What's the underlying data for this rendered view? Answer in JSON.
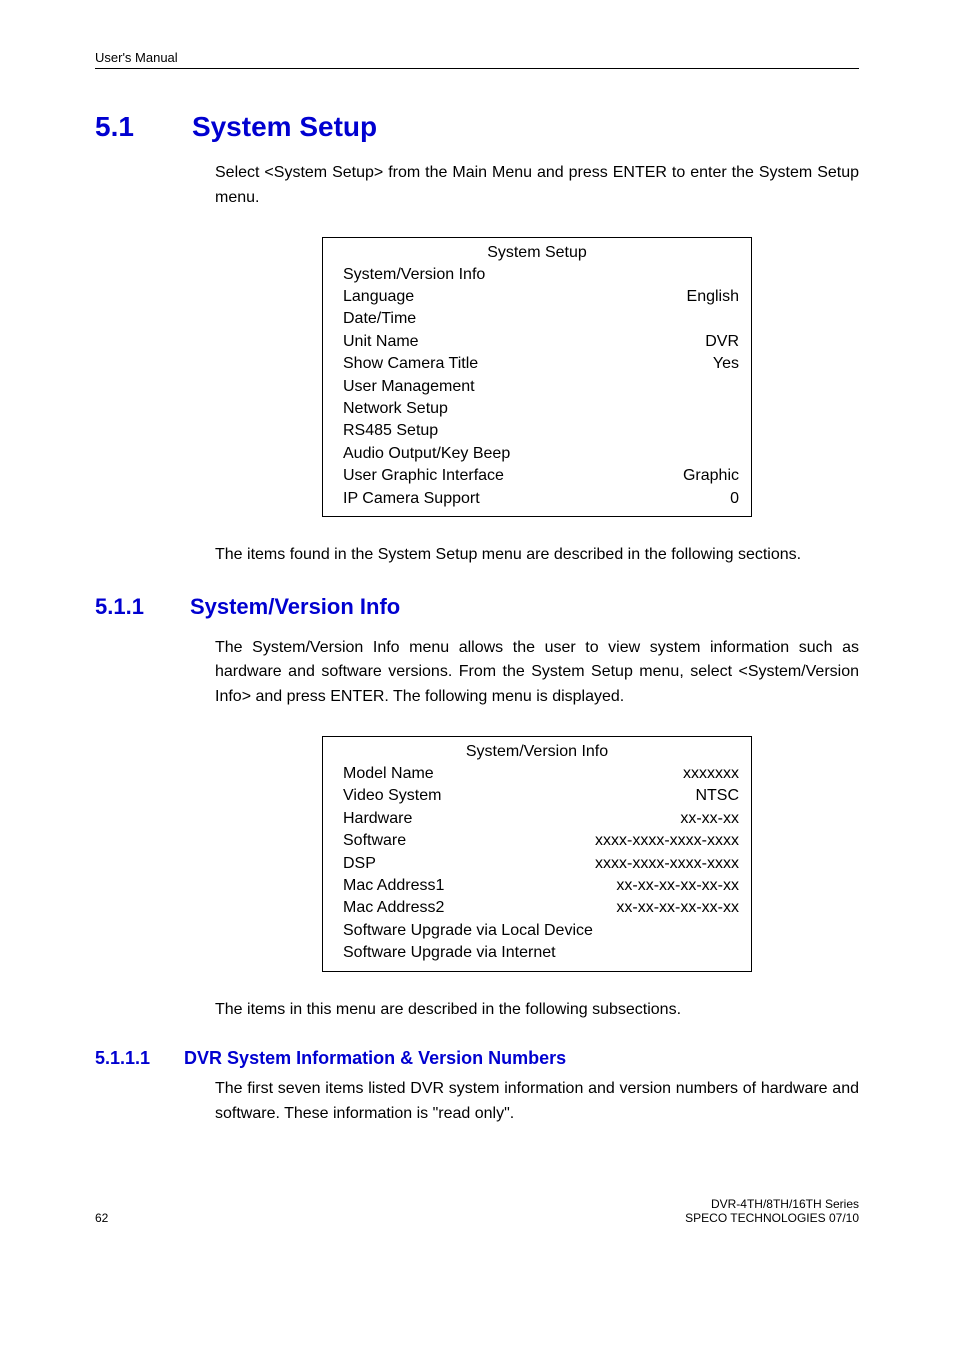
{
  "colors": {
    "heading": "#0000d0",
    "text": "#000000",
    "background": "#ffffff",
    "rule": "#000000"
  },
  "typography": {
    "body_font": "Arial",
    "body_size_pt": 12,
    "h1_size_pt": 21,
    "h2_size_pt": 17,
    "h3_size_pt": 14,
    "running_head_size_pt": 10,
    "footer_size_pt": 9
  },
  "running_head": "User's Manual",
  "section_h1": {
    "num": "5.1",
    "title": "System Setup"
  },
  "para1": "Select <System Setup> from the Main Menu and press ENTER to enter the System Setup menu.",
  "systemSetup": {
    "title": "System Setup",
    "rows": [
      {
        "label": "System/Version Info",
        "value": ""
      },
      {
        "label": "Language",
        "value": "English"
      },
      {
        "label": "Date/Time",
        "value": ""
      },
      {
        "label": "Unit Name",
        "value": "DVR"
      },
      {
        "label": "Show Camera Title",
        "value": "Yes"
      },
      {
        "label": "User Management",
        "value": ""
      },
      {
        "label": "Network Setup",
        "value": ""
      },
      {
        "label": "RS485 Setup",
        "value": ""
      },
      {
        "label": "Audio Output/Key Beep",
        "value": ""
      },
      {
        "label": "User Graphic Interface",
        "value": "Graphic"
      },
      {
        "label": "IP Camera Support",
        "value": "0"
      }
    ]
  },
  "para2": "The items found in the System Setup menu are described in the following sections.",
  "section_h2": {
    "num": "5.1.1",
    "title": "System/Version Info"
  },
  "para3": "The System/Version Info menu allows the user to view system information such as hardware and software versions. From the System Setup menu, select <System/Version Info> and press ENTER. The following menu is displayed.",
  "versionInfo": {
    "title": "System/Version Info",
    "rows": [
      {
        "label": "Model Name",
        "value": "xxxxxxx"
      },
      {
        "label": "Video System",
        "value": "NTSC"
      },
      {
        "label": "Hardware",
        "value": "xx-xx-xx"
      },
      {
        "label": "Software",
        "value": "xxxx-xxxx-xxxx-xxxx"
      },
      {
        "label": "DSP",
        "value": "xxxx-xxxx-xxxx-xxxx"
      },
      {
        "label": "Mac Address1",
        "value": "xx-xx-xx-xx-xx-xx"
      },
      {
        "label": "Mac Address2",
        "value": "xx-xx-xx-xx-xx-xx"
      },
      {
        "label": "Software Upgrade via Local Device",
        "value": ""
      },
      {
        "label": "Software Upgrade via Internet",
        "value": ""
      }
    ]
  },
  "para4": "The items in this menu are described in the following subsections.",
  "section_h3": {
    "num": "5.1.1.1",
    "title": "DVR System Information & Version Numbers"
  },
  "para5": "The first seven items listed DVR system information and version numbers of hardware and software. These information is \"read only\".",
  "footer": {
    "page": "62",
    "line1": "DVR-4TH/8TH/16TH Series",
    "line2": "SPECO TECHNOLOGIES 07/10"
  }
}
